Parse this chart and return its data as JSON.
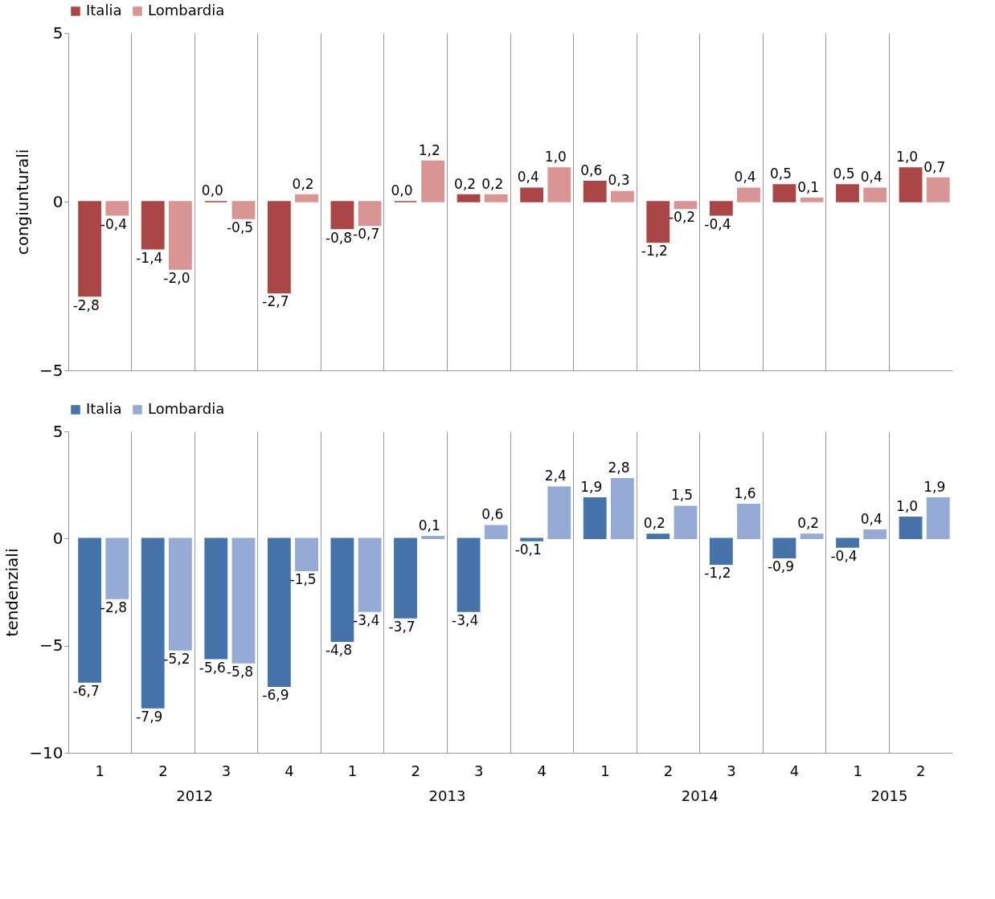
{
  "chart_data": [
    {
      "type": "bar",
      "ylabel": "congiunturali",
      "categories": [
        "1",
        "2",
        "3",
        "4",
        "1",
        "2",
        "3",
        "4",
        "1",
        "2",
        "3",
        "4",
        "1",
        "2"
      ],
      "ylim": [
        -5,
        5
      ],
      "yticks": [
        -5,
        0,
        5
      ],
      "tick_labels": "y",
      "grid": "x",
      "legend": "top",
      "series": [
        {
          "name": "Italia",
          "color": "#ab4646",
          "values": [
            -2.8,
            -1.4,
            0.0,
            -2.7,
            -0.8,
            0.0,
            0.2,
            0.4,
            0.6,
            -1.2,
            -0.4,
            0.5,
            0.5,
            1.0
          ],
          "value_labels": [
            "-2,8",
            "-1,4",
            "0,0",
            "-2,7",
            "-0,8",
            "0,0",
            "0,2",
            "0,4",
            "0,6",
            "-1,2",
            "-0,4",
            "0,5",
            "0,5",
            "1,0"
          ]
        },
        {
          "name": "Lombardia",
          "color": "#d99594",
          "values": [
            -0.4,
            -2.0,
            -0.5,
            0.2,
            -0.7,
            1.2,
            0.2,
            1.0,
            0.3,
            -0.2,
            0.4,
            0.1,
            0.4,
            0.7
          ],
          "value_labels": [
            "-0,4",
            "-2,0",
            "-0,5",
            "0,2",
            "-0,7",
            "1,2",
            "0,2",
            "1,0",
            "0,3",
            "-0,2",
            "0,4",
            "0,1",
            "0,4",
            "0,7"
          ]
        }
      ]
    },
    {
      "type": "bar",
      "ylabel": "tendenziali",
      "categories": [
        "1",
        "2",
        "3",
        "4",
        "1",
        "2",
        "3",
        "4",
        "1",
        "2",
        "3",
        "4",
        "1",
        "2"
      ],
      "ylim": [
        -10,
        5
      ],
      "yticks": [
        -10,
        -5,
        0,
        5
      ],
      "grid": "x",
      "legend": "top",
      "annotations": [
        "2012",
        "2013",
        "2014",
        "2015"
      ],
      "series": [
        {
          "name": "Italia",
          "color": "#4674aa",
          "values": [
            -6.7,
            -7.9,
            -5.6,
            -6.9,
            -4.8,
            -3.7,
            -3.4,
            -0.1,
            1.9,
            0.2,
            -1.2,
            -0.9,
            -0.4,
            1.0
          ],
          "value_labels": [
            "-6,7",
            "-7,9",
            "-5,6",
            "-6,9",
            "-4,8",
            "-3,7",
            "-3,4",
            "-0,1",
            "1,9",
            "0,2",
            "-1,2",
            "-0,9",
            "-0,4",
            "1,0"
          ]
        },
        {
          "name": "Lombardia",
          "color": "#95aad4",
          "values": [
            -2.8,
            -5.2,
            -5.8,
            -1.5,
            -3.4,
            0.1,
            0.6,
            2.4,
            2.8,
            1.5,
            1.6,
            0.2,
            0.4,
            1.9
          ],
          "value_labels": [
            "-2,8",
            "-5,2",
            "-5,8",
            "-1,5",
            "-3,4",
            "0,1",
            "0,6",
            "2,4",
            "2,8",
            "1,5",
            "1,6",
            "0,2",
            "0,4",
            "1,9"
          ]
        }
      ]
    }
  ]
}
